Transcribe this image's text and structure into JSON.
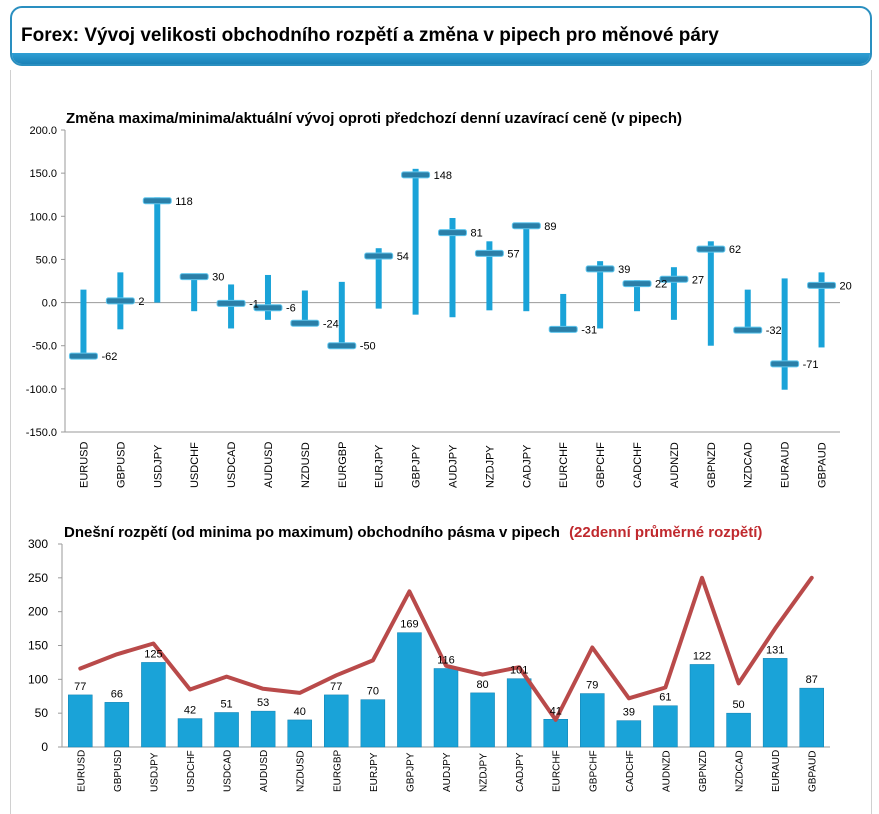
{
  "header": {
    "title": "Forex: Vývoj velikosti obchodního rozpětí a změna v pipech pro měnové páry"
  },
  "colors": {
    "accent": "#2a8fc0",
    "bar": "#1aa3d8",
    "line": "#b94a4a",
    "subtitle_red": "#c0292e"
  },
  "chart_data": [
    {
      "type": "bar",
      "title": "Změna maxima/minima/aktuální vývoj oproti předchozí denní uzavírací ceně (v pipech)",
      "categories": [
        "EURUSD",
        "GBPUSD",
        "USDJPY",
        "USDCHF",
        "USDCAD",
        "AUDUSD",
        "NZDUSD",
        "EURGBP",
        "EURJPY",
        "GBPJPY",
        "AUDJPY",
        "NZDJPY",
        "CADJPY",
        "EURCHF",
        "GBPCHF",
        "CADCHF",
        "AUDNZD",
        "GBPNZD",
        "NZDCAD",
        "EURAUD",
        "GBPAUD"
      ],
      "series": [
        {
          "values": [
            -62,
            2,
            118,
            30,
            -1,
            -6,
            -24,
            -50,
            54,
            148,
            81,
            57,
            89,
            -31,
            39,
            22,
            27,
            62,
            -32,
            -71,
            20
          ]
        }
      ],
      "high": [
        15,
        35,
        122,
        32,
        21,
        32,
        14,
        24,
        63,
        155,
        98,
        71,
        92,
        10,
        48,
        26,
        41,
        71,
        15,
        28,
        35
      ],
      "low": [
        -62,
        -31,
        0,
        -10,
        -30,
        -20,
        -22,
        -50,
        -7,
        -14,
        -17,
        -9,
        -10,
        -31,
        -30,
        -10,
        -20,
        -50,
        -34,
        -101,
        -52
      ],
      "data_labels": [
        "-62",
        "2",
        "118",
        "30",
        "-1",
        "-6",
        "-24",
        "-50",
        "54",
        "148",
        "81",
        "57",
        "89",
        "-31",
        "39",
        "22",
        "27",
        "62",
        "-32",
        "-71",
        "20"
      ],
      "ylim": [
        -150,
        200
      ],
      "yticks": [
        "200.0",
        "150.0",
        "100.0",
        "50.0",
        "0.0",
        "-50.0",
        "-100.0",
        "-150.0"
      ],
      "ytick_values": [
        200,
        150,
        100,
        50,
        0,
        -50,
        -100,
        -150
      ],
      "grid": false
    },
    {
      "type": "bar",
      "title": "Dnešní rozpětí (od minima po maximum) obchodního pásma v pipech",
      "subtitle": "(22denní průměrné rozpětí)",
      "categories": [
        "EURUSD",
        "GBPUSD",
        "USDJPY",
        "USDCHF",
        "USDCAD",
        "AUDUSD",
        "NZDUSD",
        "EURGBP",
        "EURJPY",
        "GBPJPY",
        "AUDJPY",
        "NZDJPY",
        "CADJPY",
        "EURCHF",
        "GBPCHF",
        "CADCHF",
        "AUDNZD",
        "GBPNZD",
        "NZDCAD",
        "EURAUD",
        "GBPAUD"
      ],
      "series": [
        {
          "values": [
            77,
            66,
            125,
            42,
            51,
            53,
            40,
            77,
            70,
            169,
            116,
            80,
            101,
            41,
            79,
            39,
            61,
            122,
            50,
            131,
            87
          ]
        },
        {
          "type": "line",
          "values": [
            116,
            137,
            153,
            85,
            104,
            86,
            80,
            106,
            128,
            230,
            120,
            107,
            118,
            40,
            147,
            72,
            88,
            250,
            94,
            175,
            250
          ]
        }
      ],
      "data_labels": [
        "77",
        "66",
        "125",
        "42",
        "51",
        "53",
        "40",
        "77",
        "70",
        "169",
        "116",
        "80",
        "101",
        "41",
        "79",
        "39",
        "61",
        "122",
        "50",
        "131",
        "87"
      ],
      "ylim": [
        0,
        300
      ],
      "yticks": [
        "300",
        "250",
        "200",
        "150",
        "100",
        "50",
        "0"
      ],
      "ytick_values": [
        300,
        250,
        200,
        150,
        100,
        50,
        0
      ],
      "grid": false
    }
  ]
}
